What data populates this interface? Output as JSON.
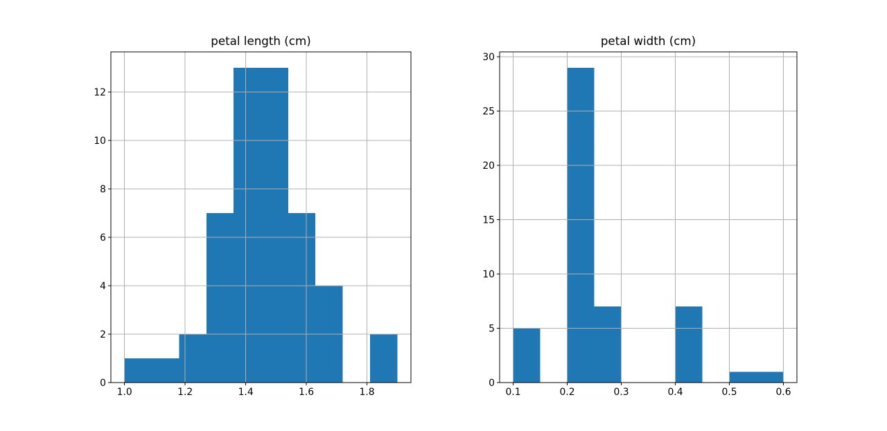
{
  "figure": {
    "background": "#ffffff"
  },
  "chart_data": [
    {
      "type": "bar",
      "kind": "histogram",
      "title": "petal length (cm)",
      "xlabel": "",
      "ylabel": "",
      "bin_edges": [
        1.0,
        1.09,
        1.18,
        1.27,
        1.36,
        1.45,
        1.54,
        1.63,
        1.72,
        1.81,
        1.9
      ],
      "counts": [
        1,
        1,
        2,
        7,
        13,
        13,
        7,
        4,
        0,
        2
      ],
      "xtick_labels": [
        "1.0",
        "1.2",
        "1.4",
        "1.6",
        "1.8"
      ],
      "xtick_values": [
        1.0,
        1.2,
        1.4,
        1.6,
        1.8
      ],
      "ytick_labels": [
        "0",
        "2",
        "4",
        "6",
        "8",
        "10",
        "12"
      ],
      "ytick_values": [
        0,
        2,
        4,
        6,
        8,
        10,
        12
      ],
      "xlim": [
        0.955,
        1.945
      ],
      "ylim": [
        0,
        13.65
      ],
      "grid": true,
      "legend": "none",
      "bar_color": "#1f77b4",
      "grid_color": "#b0b0b0",
      "axis_color": "#000000",
      "text_color": "#000000"
    },
    {
      "type": "bar",
      "kind": "histogram",
      "title": "petal width (cm)",
      "xlabel": "",
      "ylabel": "",
      "bin_edges": [
        0.1,
        0.15,
        0.2,
        0.25,
        0.3,
        0.35,
        0.4,
        0.45,
        0.5,
        0.55,
        0.6
      ],
      "counts": [
        5,
        0,
        29,
        7,
        0,
        0,
        7,
        0,
        1,
        1
      ],
      "xtick_labels": [
        "0.1",
        "0.2",
        "0.3",
        "0.4",
        "0.5",
        "0.6"
      ],
      "xtick_values": [
        0.1,
        0.2,
        0.3,
        0.4,
        0.5,
        0.6
      ],
      "ytick_labels": [
        "0",
        "5",
        "10",
        "15",
        "20",
        "25",
        "30"
      ],
      "ytick_values": [
        0,
        5,
        10,
        15,
        20,
        25,
        30
      ],
      "xlim": [
        0.075,
        0.625
      ],
      "ylim": [
        0,
        30.45
      ],
      "grid": true,
      "legend": "none",
      "bar_color": "#1f77b4",
      "grid_color": "#b0b0b0",
      "axis_color": "#000000",
      "text_color": "#000000"
    }
  ]
}
